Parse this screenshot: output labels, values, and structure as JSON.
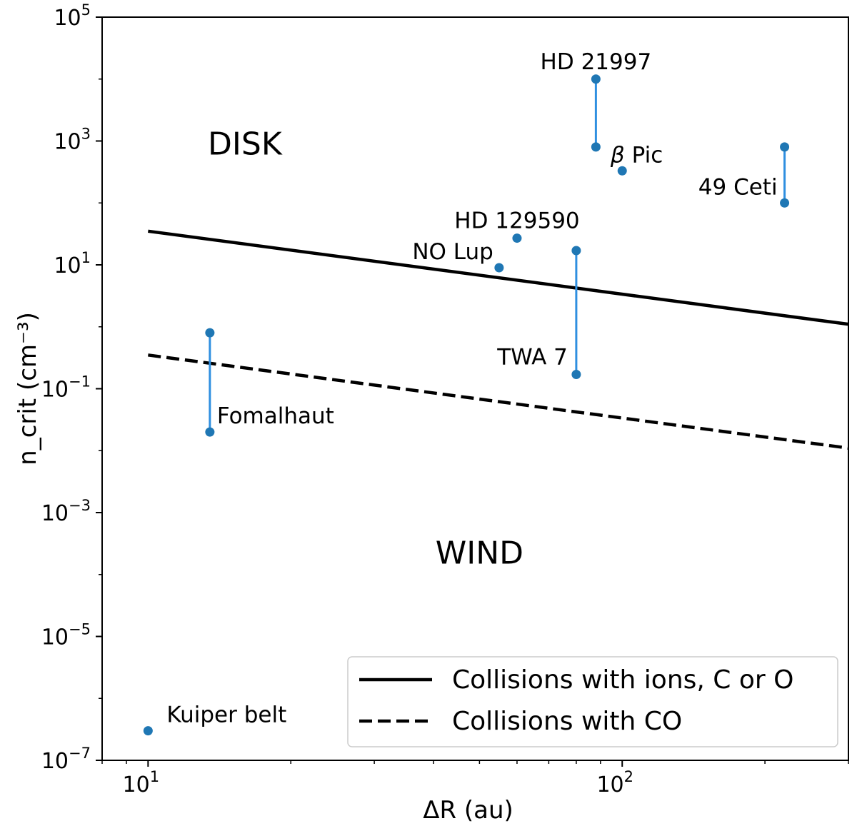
{
  "chart_data": {
    "type": "scatter",
    "xscale": "log",
    "yscale": "log",
    "xlim": [
      8,
      300
    ],
    "ylim": [
      1e-07,
      100000.0
    ],
    "xlabel": "ΔR (au)",
    "ylabel": "n_crit (cm⁻³)",
    "x_ticks": [
      {
        "value": 10,
        "base": "10",
        "exp": "1"
      },
      {
        "value": 100,
        "base": "10",
        "exp": "2"
      }
    ],
    "y_ticks": [
      {
        "value": 1e-07,
        "base": "10",
        "exp": "−7"
      },
      {
        "value": 1e-05,
        "base": "10",
        "exp": "−5"
      },
      {
        "value": 0.001,
        "base": "10",
        "exp": "−3"
      },
      {
        "value": 0.1,
        "base": "10",
        "exp": "−1"
      },
      {
        "value": 10,
        "base": "10",
        "exp": "1"
      },
      {
        "value": 1000,
        "base": "10",
        "exp": "3"
      },
      {
        "value": 100000,
        "base": "10",
        "exp": "5"
      }
    ],
    "series": [
      {
        "name": "Collisions with ions, C or O",
        "style": "solid",
        "color": "#000000",
        "points": [
          {
            "x": 10,
            "y": 35
          },
          {
            "x": 300,
            "y": 1.1
          }
        ]
      },
      {
        "name": "Collisions with CO",
        "style": "dashed",
        "color": "#000000",
        "points": [
          {
            "x": 10,
            "y": 0.35
          },
          {
            "x": 300,
            "y": 0.011
          }
        ]
      }
    ],
    "targets": [
      {
        "name": "HD 21997",
        "x": 88,
        "y": [
          800,
          10000
        ],
        "label": "HD 21997",
        "label_pos": "above"
      },
      {
        "name": "β Pic",
        "x": 100,
        "y": [
          330
        ],
        "label_prefix": "β",
        "label": "Pic",
        "label_pos": "above-left"
      },
      {
        "name": "49 Ceti",
        "x": 220,
        "y": [
          100,
          800
        ],
        "label": "49 Ceti",
        "label_pos": "left"
      },
      {
        "name": "HD 129590",
        "x": 60,
        "y": [
          27
        ],
        "label": "HD 129590",
        "label_pos": "above"
      },
      {
        "name": "NO Lup",
        "x": 55,
        "y": [
          9
        ],
        "label": "NO Lup",
        "label_pos": "above-left"
      },
      {
        "name": "TWA 7",
        "x": 80,
        "y": [
          0.17,
          17
        ],
        "label": "TWA 7",
        "label_pos": "left-low"
      },
      {
        "name": "Fomalhaut",
        "x": 13.5,
        "y": [
          0.02,
          0.8
        ],
        "label": "Fomalhaut",
        "label_pos": "right-low"
      },
      {
        "name": "Kuiper belt",
        "x": 10,
        "y": [
          3e-07
        ],
        "label": "Kuiper belt",
        "label_pos": "above-right"
      }
    ],
    "regions": [
      {
        "text": "DISK",
        "x": 16,
        "y": 600
      },
      {
        "text": "WIND",
        "x": 50,
        "y": 0.00015
      }
    ],
    "legend": {
      "position": "lower-right",
      "entries": [
        "Collisions with ions, C or O",
        "Collisions with CO"
      ]
    },
    "colors": {
      "points": "#1f77b4",
      "range_line": "#2f8fe0",
      "fit_lines": "#000000"
    }
  }
}
